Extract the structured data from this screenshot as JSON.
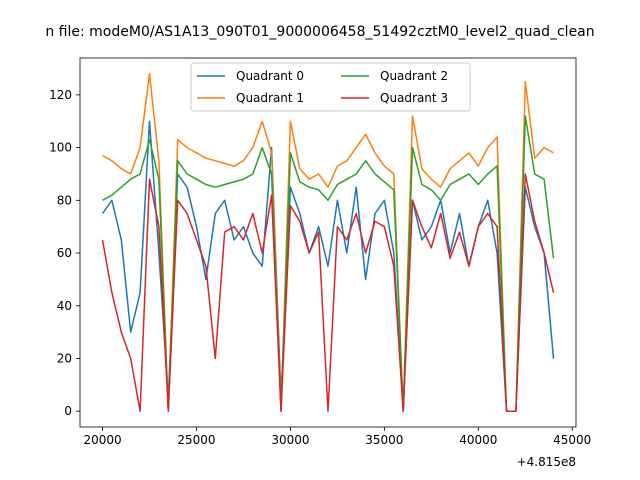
{
  "chart_data": {
    "type": "line",
    "title": "n file: modeM0/AS1A13_090T01_9000006458_51492cztM0_level2_quad_clean",
    "xlabel": "",
    "ylabel": "",
    "x_offset_text": "+4.815e8",
    "xlim": [
      18800,
      45200
    ],
    "ylim": [
      -6,
      134
    ],
    "x_ticks": [
      20000,
      25000,
      30000,
      35000,
      40000,
      45000
    ],
    "x_tick_labels": [
      "20000",
      "25000",
      "30000",
      "35000",
      "40000",
      "45000"
    ],
    "y_ticks": [
      0,
      20,
      40,
      60,
      80,
      100,
      120
    ],
    "y_tick_labels": [
      "0",
      "20",
      "40",
      "60",
      "80",
      "100",
      "120"
    ],
    "grid": false,
    "legend": {
      "position": "top-center",
      "columns": 2
    },
    "x": [
      20000,
      20500,
      21000,
      21500,
      22000,
      22500,
      23000,
      23500,
      24000,
      24500,
      25000,
      25500,
      26000,
      26500,
      27000,
      27500,
      28000,
      28500,
      29000,
      29500,
      30000,
      30500,
      31000,
      31500,
      32000,
      32500,
      33000,
      33500,
      34000,
      34500,
      35000,
      35500,
      36000,
      36500,
      37000,
      37500,
      38000,
      38500,
      39000,
      39500,
      40000,
      40500,
      41000,
      41500,
      42000,
      42500,
      43000,
      43500,
      44000
    ],
    "series": [
      {
        "name": "Quadrant 0",
        "color": "#1f77b4",
        "values": [
          75,
          80,
          65,
          30,
          45,
          110,
          60,
          5,
          90,
          85,
          70,
          50,
          75,
          80,
          65,
          70,
          60,
          55,
          100,
          5,
          85,
          75,
          60,
          70,
          55,
          80,
          60,
          85,
          50,
          75,
          80,
          60,
          0,
          80,
          65,
          70,
          80,
          60,
          75,
          55,
          70,
          80,
          60,
          0,
          0,
          85,
          70,
          60,
          20
        ]
      },
      {
        "name": "Quadrant 1",
        "color": "#ff7f0e",
        "values": [
          97,
          95,
          92,
          90,
          100,
          128,
          95,
          0,
          103,
          100,
          98,
          96,
          95,
          94,
          93,
          95,
          100,
          110,
          98,
          0,
          110,
          92,
          88,
          90,
          85,
          93,
          95,
          100,
          105,
          98,
          93,
          90,
          0,
          112,
          92,
          88,
          85,
          92,
          95,
          98,
          93,
          100,
          104,
          0,
          0,
          125,
          96,
          100,
          98
        ]
      },
      {
        "name": "Quadrant 2",
        "color": "#2ca02c",
        "values": [
          80,
          82,
          85,
          88,
          90,
          103,
          88,
          0,
          95,
          90,
          88,
          86,
          85,
          86,
          87,
          88,
          90,
          100,
          90,
          0,
          98,
          87,
          85,
          84,
          80,
          86,
          88,
          90,
          95,
          90,
          87,
          84,
          0,
          100,
          86,
          84,
          80,
          86,
          88,
          90,
          86,
          90,
          93,
          0,
          0,
          112,
          90,
          88,
          58
        ]
      },
      {
        "name": "Quadrant 3",
        "color": "#d62728",
        "values": [
          65,
          45,
          30,
          20,
          0,
          88,
          70,
          0,
          80,
          75,
          65,
          55,
          20,
          68,
          70,
          65,
          75,
          60,
          82,
          0,
          78,
          72,
          60,
          68,
          0,
          70,
          65,
          75,
          60,
          72,
          70,
          55,
          0,
          80,
          70,
          62,
          75,
          58,
          68,
          55,
          70,
          75,
          70,
          0,
          0,
          90,
          72,
          60,
          45
        ]
      }
    ]
  }
}
